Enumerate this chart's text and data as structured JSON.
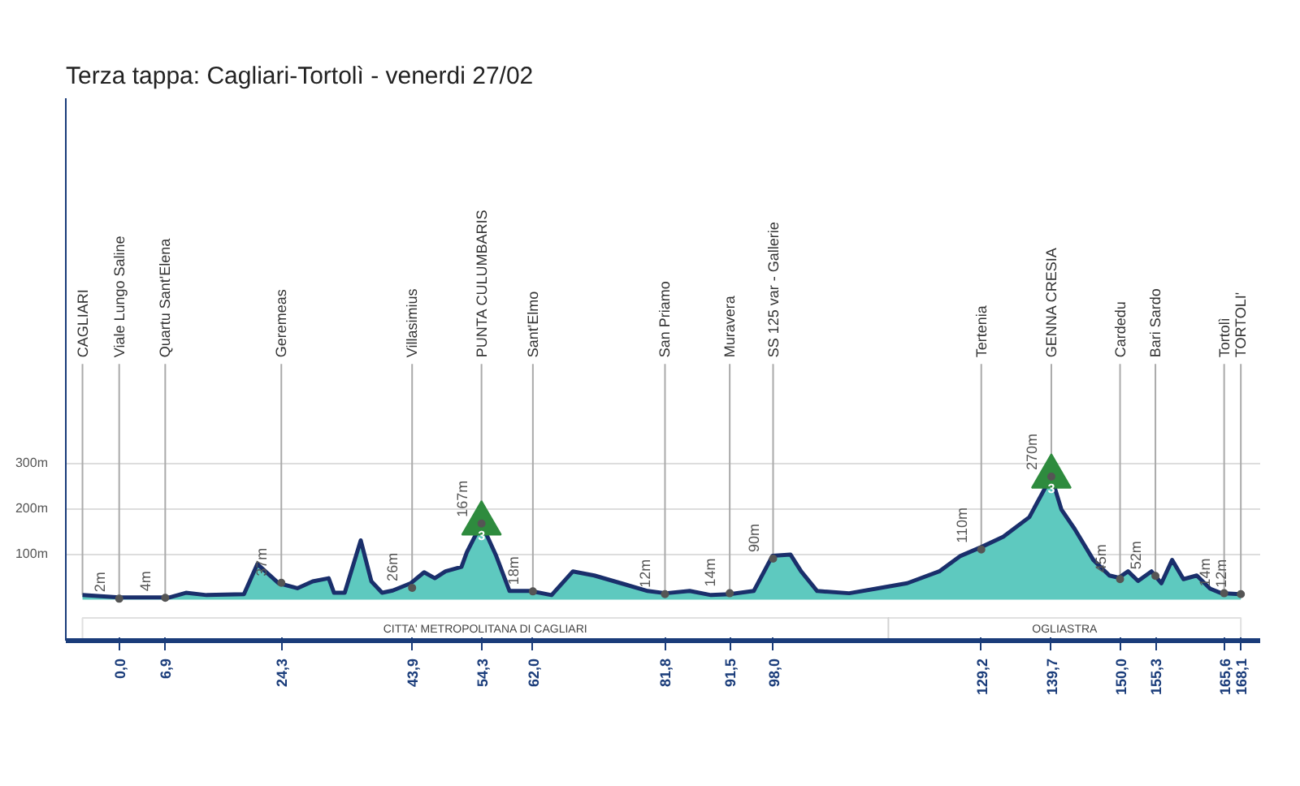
{
  "chart_data": {
    "type": "area",
    "title": "Terza tappa: Cagliari-Tortolì - venerdi 27/02",
    "xlim": [
      -8,
      171
    ],
    "ylim": [
      -90,
      1100
    ],
    "xticks": [
      {
        "value": 0,
        "label": "0,0"
      },
      {
        "value": 6.9,
        "label": "6,9"
      },
      {
        "value": 24.3,
        "label": "24,3"
      },
      {
        "value": 43.9,
        "label": "43,9"
      },
      {
        "value": 54.3,
        "label": "54,3"
      },
      {
        "value": 62.0,
        "label": "62,0"
      },
      {
        "value": 81.8,
        "label": "81,8"
      },
      {
        "value": 91.5,
        "label": "91,5"
      },
      {
        "value": 98.0,
        "label": "98,0"
      },
      {
        "value": 129.2,
        "label": "129,2"
      },
      {
        "value": 139.7,
        "label": "139,7"
      },
      {
        "value": 150.0,
        "label": "150,0"
      },
      {
        "value": 155.3,
        "label": "155,3"
      },
      {
        "value": 165.6,
        "label": "165,6"
      },
      {
        "value": 168.1,
        "label": "168,1"
      }
    ],
    "yticks": [
      {
        "value": 100,
        "label": "100m"
      },
      {
        "value": 200,
        "label": "200m"
      },
      {
        "value": 300,
        "label": "300m"
      }
    ],
    "grid": "y",
    "series": [
      {
        "color": "#5ec9bf",
        "x": [
          -5.5,
          0,
          7.6,
          10.0,
          13.1,
          18.7,
          20.7,
          23.9,
          26.7,
          29.0,
          31.4,
          32.2,
          33.8,
          36.2,
          37.8,
          39.4,
          41.0,
          43.7,
          45.7,
          47.3,
          48.9,
          51.3,
          52.1,
          54.3,
          56.5,
          58.5,
          61.6,
          64.8,
          68.0,
          71.2,
          75.2,
          79.2,
          81.9,
          85.5,
          88.7,
          91.5,
          95.1,
          97.9,
          100.6,
          102.2,
          104.6,
          109.4,
          113.4,
          118.1,
          122.9,
          126.1,
          129.3,
          132.5,
          136.4,
          139.7,
          141.2,
          143.2,
          146.0,
          148.4,
          149.8,
          151.2,
          152.7,
          154.7,
          156.2,
          157.8,
          159.5,
          161.5,
          163.5,
          165.2,
          168.1
        ],
        "values": [
          10,
          5,
          5,
          15,
          10,
          12,
          78,
          36,
          25,
          40,
          47,
          15,
          15,
          130,
          40,
          15,
          20,
          36,
          60,
          47,
          62,
          72,
          104,
          167,
          96,
          19,
          19,
          10,
          62,
          53,
          36,
          19,
          14,
          19,
          10,
          12,
          19,
          96,
          99,
          62,
          19,
          14,
          24,
          36,
          62,
          96,
          116,
          138,
          181,
          270,
          198,
          155,
          87,
          53,
          48,
          62,
          41,
          62,
          36,
          87,
          45,
          53,
          24,
          14,
          12
        ]
      },
      {
        "type": "scatter",
        "marker": "circle",
        "color": "#555555",
        "x": [
          0,
          6.9,
          24.3,
          43.9,
          54.3,
          62.0,
          81.8,
          91.5,
          98.0,
          129.2,
          139.7,
          150.0,
          155.3,
          165.6,
          168.1
        ],
        "values": [
          2,
          4,
          37,
          26,
          167,
          18,
          12,
          14,
          90,
          110,
          270,
          45,
          52,
          14,
          12
        ],
        "value_labels": [
          "2m",
          "4m",
          "37m",
          "26m",
          "167m",
          "18m",
          "12m",
          "14m",
          "90m",
          "110m",
          "270m",
          "45m",
          "52m",
          "14m",
          "12m"
        ]
      }
    ],
    "annotations": [
      {
        "text": "CAGLIARI",
        "x": -5.5,
        "y": 10
      },
      {
        "text": "Viale Lungo Saline",
        "x": 0,
        "y": 2
      },
      {
        "text": "Quartu Sant'Elena",
        "x": 6.9,
        "y": 4
      },
      {
        "text": "Geremeas",
        "x": 24.3,
        "y": 37
      },
      {
        "text": "Villasimius",
        "x": 43.9,
        "y": 26
      },
      {
        "text": "PUNTA CULUMBARIS",
        "x": 54.3,
        "y": 167
      },
      {
        "text": "3",
        "x": 54.3,
        "y": 167
      },
      {
        "text": "Sant'Elmo",
        "x": 62.0,
        "y": 18
      },
      {
        "text": "San Priamo",
        "x": 81.8,
        "y": 12
      },
      {
        "text": "Muravera",
        "x": 91.5,
        "y": 14
      },
      {
        "text": "SS 125 var - Gallerie",
        "x": 98.0,
        "y": 90
      },
      {
        "text": "Tertenia",
        "x": 129.2,
        "y": 110
      },
      {
        "text": "GENNA CRESIA",
        "x": 139.7,
        "y": 270
      },
      {
        "text": "3",
        "x": 139.7,
        "y": 270
      },
      {
        "text": "Cardedu",
        "x": 150.0,
        "y": 45
      },
      {
        "text": "Bari Sardo",
        "x": 155.3,
        "y": 52
      },
      {
        "text": "Tortolì",
        "x": 165.6,
        "y": 14
      },
      {
        "text": "TORTOLI'",
        "x": 168.1,
        "y": 12
      }
    ],
    "bands": [
      {
        "axis": "x",
        "from": -5.5,
        "to": 115.3,
        "label": "CITTA' METROPOLITANA DI CAGLIARI",
        "color": "#ffffff"
      },
      {
        "axis": "x",
        "from": 115.3,
        "to": 168.1,
        "label": "OGLIASTRA",
        "color": "#ffffff"
      }
    ]
  }
}
